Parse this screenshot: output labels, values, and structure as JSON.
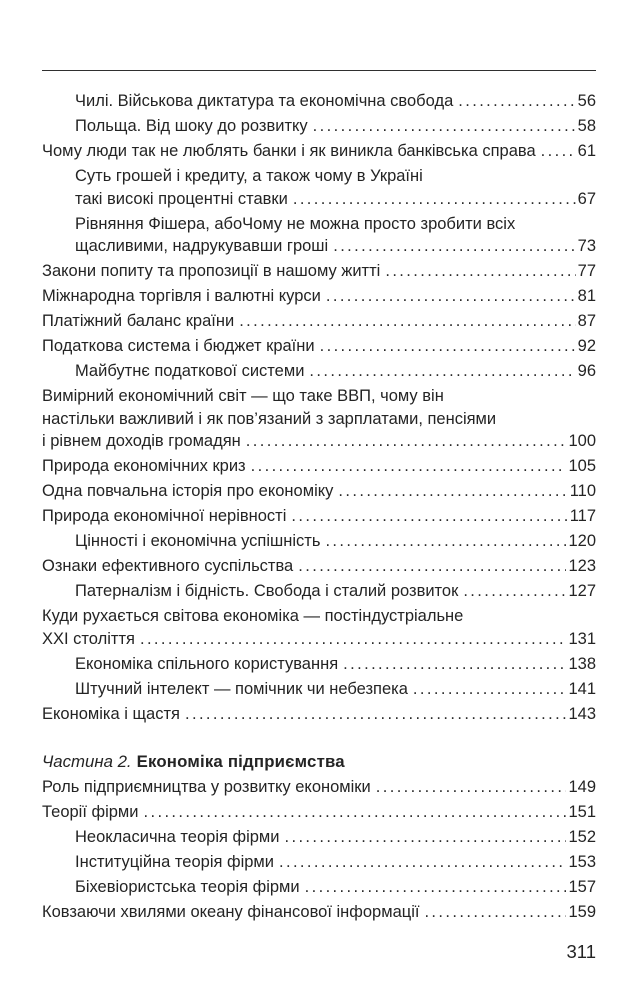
{
  "colors": {
    "text": "#242424",
    "rule": "#2f2f2f",
    "background": "#ffffff"
  },
  "footer": {
    "page_number": "311"
  },
  "toc": {
    "part2_heading": {
      "label_italic": "Частина 2.",
      "title_bold": "Економіка підприємства"
    },
    "sections": [
      {
        "entries": [
          {
            "level": 2,
            "lines": [
              "Чилі. Військова диктатура та економічна свобода"
            ],
            "page": "56"
          },
          {
            "level": 2,
            "lines": [
              "Польща. Від шоку до розвитку"
            ],
            "page": "58"
          },
          {
            "level": 1,
            "lines": [
              "Чому люди так не люблять банки і як виникла банківська справа"
            ],
            "page": "61"
          },
          {
            "level": 2,
            "lines": [
              "Суть грошей і кредиту, а також чому в Україні",
              "такі високі процентні ставки"
            ],
            "page": "67"
          },
          {
            "level": 2,
            "lines": [
              "Рівняння Фішера, абоЧому не можна просто зробити всіх",
              "щасливими, надрукувавши гроші"
            ],
            "page": "73"
          },
          {
            "level": 1,
            "lines": [
              "Закони попиту та пропозиції в нашому житті"
            ],
            "page": "77"
          },
          {
            "level": 1,
            "lines": [
              "Міжнародна торгівля і валютні курси"
            ],
            "page": "81"
          },
          {
            "level": 1,
            "lines": [
              "Платіжний баланс країни"
            ],
            "page": "87"
          },
          {
            "level": 1,
            "lines": [
              "Податкова система і бюджет країни"
            ],
            "page": "92"
          },
          {
            "level": 2,
            "lines": [
              "Майбутнє податкової системи"
            ],
            "page": "96"
          },
          {
            "level": 1,
            "lines": [
              "Вимірний економічний світ — що таке ВВП, чому він",
              "настільки важливий і як пов’язаний з зарплатами, пенсіями",
              "і рівнем доходів громадян"
            ],
            "page": "100"
          },
          {
            "level": 1,
            "lines": [
              "Природа економічних криз"
            ],
            "page": "105"
          },
          {
            "level": 1,
            "lines": [
              "Одна повчальна історія про економіку"
            ],
            "page": "110"
          },
          {
            "level": 1,
            "lines": [
              "Природа економічної нерівності"
            ],
            "page": "117"
          },
          {
            "level": 2,
            "lines": [
              "Цінності і економічна успішність"
            ],
            "page": "120"
          },
          {
            "level": 1,
            "lines": [
              "Ознаки ефективного суспільства"
            ],
            "page": "123"
          },
          {
            "level": 2,
            "lines": [
              "Патерналізм і бідність. Свобода і сталий розвиток"
            ],
            "page": "127"
          },
          {
            "level": 1,
            "lines": [
              "Куди рухається світова економіка — постіндустріальне",
              "XXI століття"
            ],
            "page": "131"
          },
          {
            "level": 2,
            "lines": [
              "Економіка спільного користування"
            ],
            "page": "138"
          },
          {
            "level": 2,
            "lines": [
              "Штучний інтелект — помічник чи небезпека"
            ],
            "page": "141"
          },
          {
            "level": 1,
            "lines": [
              "Економіка і щастя"
            ],
            "page": "143"
          }
        ]
      },
      {
        "entries": [
          {
            "level": 1,
            "lines": [
              "Роль підприємництва у розвитку економіки"
            ],
            "page": "149"
          },
          {
            "level": 1,
            "lines": [
              "Теорії фірми"
            ],
            "page": "151"
          },
          {
            "level": 2,
            "lines": [
              "Неокласична теорія фірми"
            ],
            "page": "152"
          },
          {
            "level": 2,
            "lines": [
              "Інституційна теорія фірми"
            ],
            "page": "153"
          },
          {
            "level": 2,
            "lines": [
              "Біхевіористська теорія фірми"
            ],
            "page": "157"
          },
          {
            "level": 1,
            "lines": [
              "Ковзаючи хвилями океану фінансової інформації"
            ],
            "page": "159"
          }
        ]
      }
    ]
  }
}
